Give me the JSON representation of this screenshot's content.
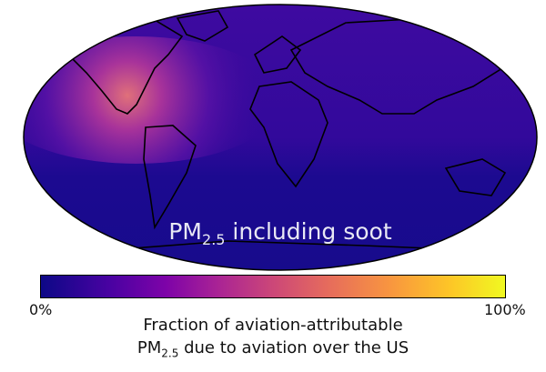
{
  "map": {
    "projection": "Robinson-like world map",
    "title_prefix": "PM",
    "title_subscript": "2.5",
    "title_suffix": " including soot",
    "background_color": "#2a0d97",
    "hotspot_color": "#d9607a"
  },
  "colorbar": {
    "colormap": "plasma",
    "range": [
      0,
      100
    ],
    "min_label": "0%",
    "max_label": "100%",
    "label_line1": "Fraction of aviation-attributable",
    "label_line2_prefix": "PM",
    "label_line2_subscript": "2.5",
    "label_line2_suffix": " due to aviation over the US"
  }
}
